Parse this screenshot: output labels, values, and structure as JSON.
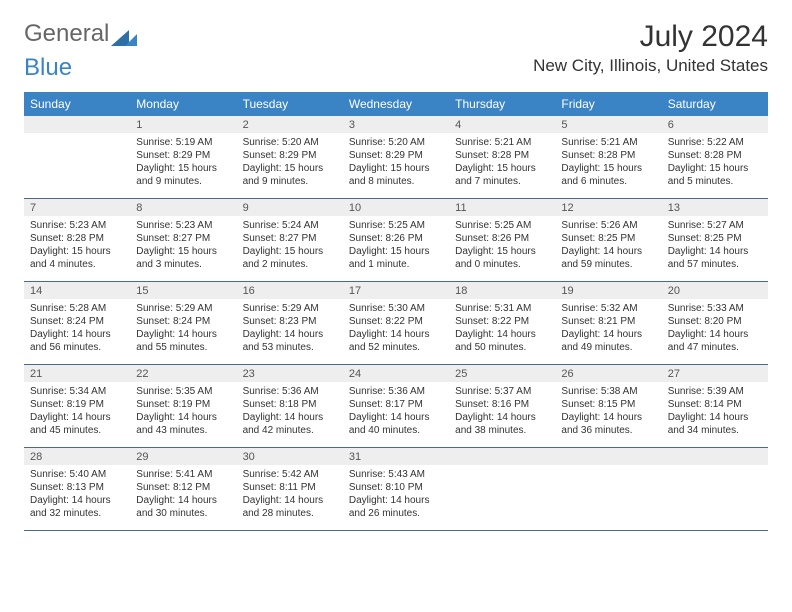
{
  "brand": {
    "part1": "General",
    "part2": "Blue"
  },
  "title": "July 2024",
  "location": "New City, Illinois, United States",
  "colors": {
    "header_bg": "#3a84c5",
    "header_text": "#ffffff",
    "daynum_bg": "#eeeeee",
    "week_border": "#4a6a8a",
    "body_text": "#333333"
  },
  "day_names": [
    "Sunday",
    "Monday",
    "Tuesday",
    "Wednesday",
    "Thursday",
    "Friday",
    "Saturday"
  ],
  "weeks": [
    [
      {
        "n": "",
        "lines": []
      },
      {
        "n": "1",
        "lines": [
          "Sunrise: 5:19 AM",
          "Sunset: 8:29 PM",
          "Daylight: 15 hours and 9 minutes."
        ]
      },
      {
        "n": "2",
        "lines": [
          "Sunrise: 5:20 AM",
          "Sunset: 8:29 PM",
          "Daylight: 15 hours and 9 minutes."
        ]
      },
      {
        "n": "3",
        "lines": [
          "Sunrise: 5:20 AM",
          "Sunset: 8:29 PM",
          "Daylight: 15 hours and 8 minutes."
        ]
      },
      {
        "n": "4",
        "lines": [
          "Sunrise: 5:21 AM",
          "Sunset: 8:28 PM",
          "Daylight: 15 hours and 7 minutes."
        ]
      },
      {
        "n": "5",
        "lines": [
          "Sunrise: 5:21 AM",
          "Sunset: 8:28 PM",
          "Daylight: 15 hours and 6 minutes."
        ]
      },
      {
        "n": "6",
        "lines": [
          "Sunrise: 5:22 AM",
          "Sunset: 8:28 PM",
          "Daylight: 15 hours and 5 minutes."
        ]
      }
    ],
    [
      {
        "n": "7",
        "lines": [
          "Sunrise: 5:23 AM",
          "Sunset: 8:28 PM",
          "Daylight: 15 hours and 4 minutes."
        ]
      },
      {
        "n": "8",
        "lines": [
          "Sunrise: 5:23 AM",
          "Sunset: 8:27 PM",
          "Daylight: 15 hours and 3 minutes."
        ]
      },
      {
        "n": "9",
        "lines": [
          "Sunrise: 5:24 AM",
          "Sunset: 8:27 PM",
          "Daylight: 15 hours and 2 minutes."
        ]
      },
      {
        "n": "10",
        "lines": [
          "Sunrise: 5:25 AM",
          "Sunset: 8:26 PM",
          "Daylight: 15 hours and 1 minute."
        ]
      },
      {
        "n": "11",
        "lines": [
          "Sunrise: 5:25 AM",
          "Sunset: 8:26 PM",
          "Daylight: 15 hours and 0 minutes."
        ]
      },
      {
        "n": "12",
        "lines": [
          "Sunrise: 5:26 AM",
          "Sunset: 8:25 PM",
          "Daylight: 14 hours and 59 minutes."
        ]
      },
      {
        "n": "13",
        "lines": [
          "Sunrise: 5:27 AM",
          "Sunset: 8:25 PM",
          "Daylight: 14 hours and 57 minutes."
        ]
      }
    ],
    [
      {
        "n": "14",
        "lines": [
          "Sunrise: 5:28 AM",
          "Sunset: 8:24 PM",
          "Daylight: 14 hours and 56 minutes."
        ]
      },
      {
        "n": "15",
        "lines": [
          "Sunrise: 5:29 AM",
          "Sunset: 8:24 PM",
          "Daylight: 14 hours and 55 minutes."
        ]
      },
      {
        "n": "16",
        "lines": [
          "Sunrise: 5:29 AM",
          "Sunset: 8:23 PM",
          "Daylight: 14 hours and 53 minutes."
        ]
      },
      {
        "n": "17",
        "lines": [
          "Sunrise: 5:30 AM",
          "Sunset: 8:22 PM",
          "Daylight: 14 hours and 52 minutes."
        ]
      },
      {
        "n": "18",
        "lines": [
          "Sunrise: 5:31 AM",
          "Sunset: 8:22 PM",
          "Daylight: 14 hours and 50 minutes."
        ]
      },
      {
        "n": "19",
        "lines": [
          "Sunrise: 5:32 AM",
          "Sunset: 8:21 PM",
          "Daylight: 14 hours and 49 minutes."
        ]
      },
      {
        "n": "20",
        "lines": [
          "Sunrise: 5:33 AM",
          "Sunset: 8:20 PM",
          "Daylight: 14 hours and 47 minutes."
        ]
      }
    ],
    [
      {
        "n": "21",
        "lines": [
          "Sunrise: 5:34 AM",
          "Sunset: 8:19 PM",
          "Daylight: 14 hours and 45 minutes."
        ]
      },
      {
        "n": "22",
        "lines": [
          "Sunrise: 5:35 AM",
          "Sunset: 8:19 PM",
          "Daylight: 14 hours and 43 minutes."
        ]
      },
      {
        "n": "23",
        "lines": [
          "Sunrise: 5:36 AM",
          "Sunset: 8:18 PM",
          "Daylight: 14 hours and 42 minutes."
        ]
      },
      {
        "n": "24",
        "lines": [
          "Sunrise: 5:36 AM",
          "Sunset: 8:17 PM",
          "Daylight: 14 hours and 40 minutes."
        ]
      },
      {
        "n": "25",
        "lines": [
          "Sunrise: 5:37 AM",
          "Sunset: 8:16 PM",
          "Daylight: 14 hours and 38 minutes."
        ]
      },
      {
        "n": "26",
        "lines": [
          "Sunrise: 5:38 AM",
          "Sunset: 8:15 PM",
          "Daylight: 14 hours and 36 minutes."
        ]
      },
      {
        "n": "27",
        "lines": [
          "Sunrise: 5:39 AM",
          "Sunset: 8:14 PM",
          "Daylight: 14 hours and 34 minutes."
        ]
      }
    ],
    [
      {
        "n": "28",
        "lines": [
          "Sunrise: 5:40 AM",
          "Sunset: 8:13 PM",
          "Daylight: 14 hours and 32 minutes."
        ]
      },
      {
        "n": "29",
        "lines": [
          "Sunrise: 5:41 AM",
          "Sunset: 8:12 PM",
          "Daylight: 14 hours and 30 minutes."
        ]
      },
      {
        "n": "30",
        "lines": [
          "Sunrise: 5:42 AM",
          "Sunset: 8:11 PM",
          "Daylight: 14 hours and 28 minutes."
        ]
      },
      {
        "n": "31",
        "lines": [
          "Sunrise: 5:43 AM",
          "Sunset: 8:10 PM",
          "Daylight: 14 hours and 26 minutes."
        ]
      },
      {
        "n": "",
        "lines": []
      },
      {
        "n": "",
        "lines": []
      },
      {
        "n": "",
        "lines": []
      }
    ]
  ]
}
